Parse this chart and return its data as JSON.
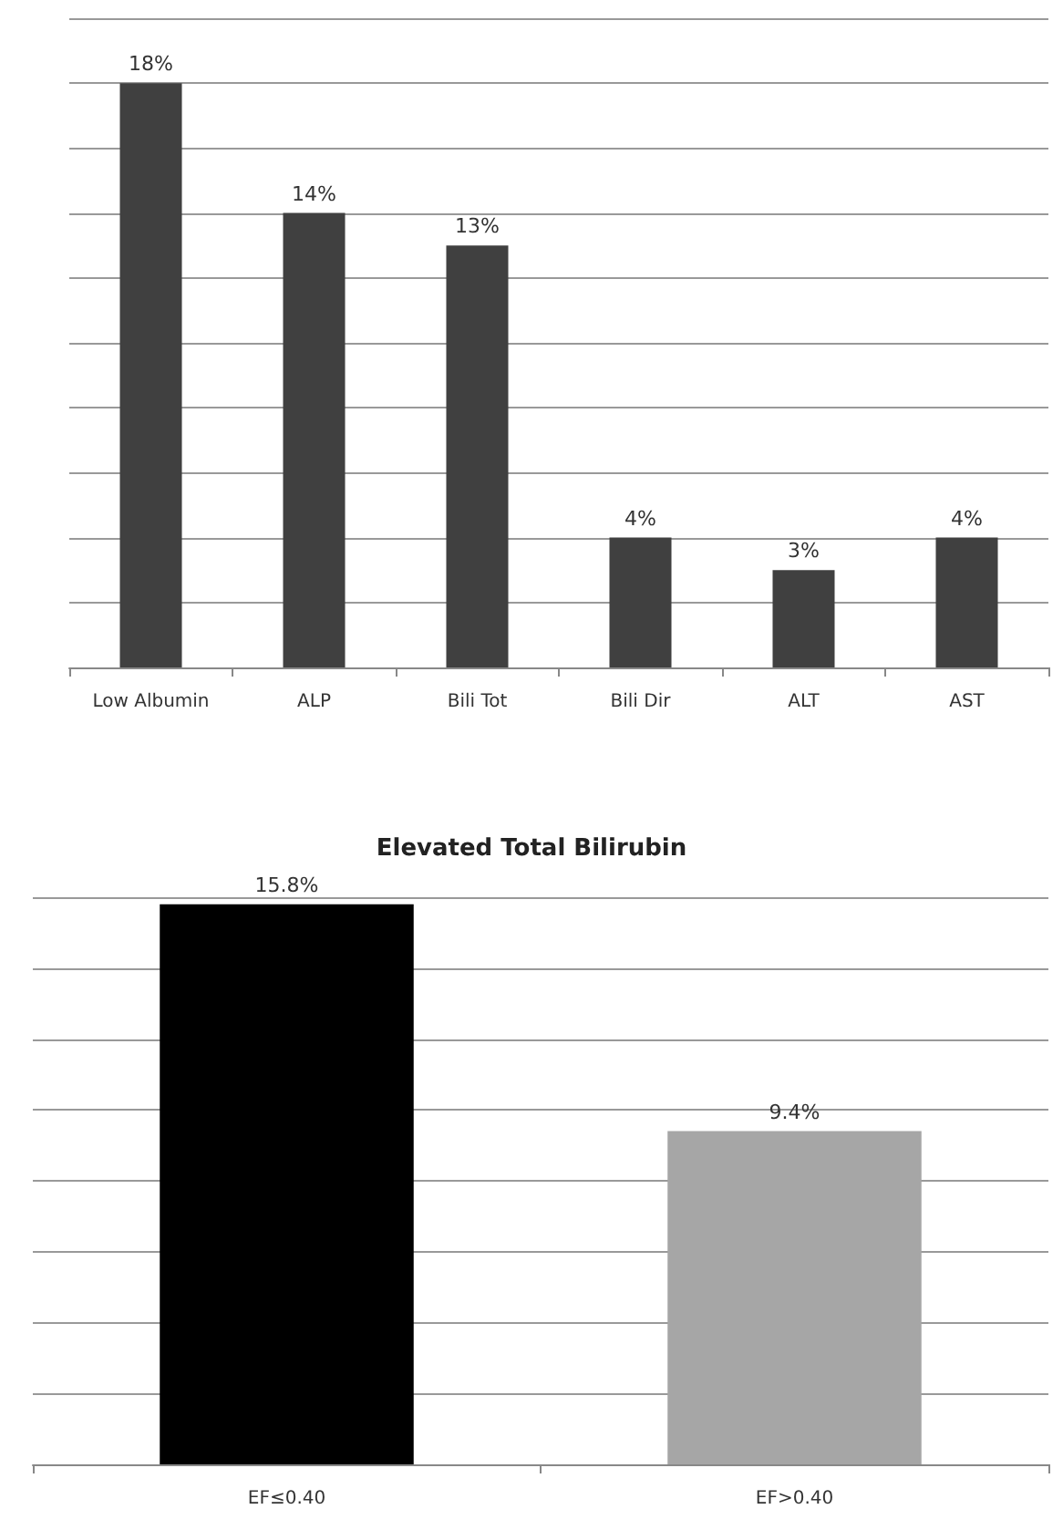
{
  "chart_data": [
    {
      "type": "bar",
      "categories": [
        "Low Albumin",
        "ALP",
        "Bili Tot",
        "Bili Dir",
        "ALT",
        "AST"
      ],
      "values": [
        18,
        14,
        13,
        4,
        3,
        4
      ],
      "value_labels": [
        "18%",
        "14%",
        "13%",
        "4%",
        "3%",
        "4%"
      ],
      "color": "#404040",
      "ylim": [
        0,
        20
      ],
      "yticks": [
        {
          "value": 0,
          "label": null
        },
        {
          "value": 2,
          "label": null
        },
        {
          "value": 4,
          "label": null
        },
        {
          "value": 6,
          "label": null
        },
        {
          "value": 8,
          "label": null
        },
        {
          "value": 10,
          "label": null
        },
        {
          "value": 12,
          "label": null
        },
        {
          "value": 14,
          "label": null
        },
        {
          "value": 16,
          "label": null
        },
        {
          "value": 18,
          "label": null
        },
        {
          "value": 20,
          "label": null
        }
      ],
      "grid": "y",
      "tick_labels": "x"
    },
    {
      "type": "bar",
      "title": "Elevated Total Bilirubin",
      "categories": [
        "EF≤0.40",
        "EF>0.40"
      ],
      "values": [
        15.8,
        9.4
      ],
      "value_labels": [
        "15.8%",
        "9.4%"
      ],
      "colors": [
        "#000000",
        "#a6a6a6"
      ],
      "ylim": [
        0,
        16
      ],
      "yticks": [
        {
          "value": 0,
          "label": null
        },
        {
          "value": 2,
          "label": null
        },
        {
          "value": 4,
          "label": null
        },
        {
          "value": 6,
          "label": null
        },
        {
          "value": 8,
          "label": null
        },
        {
          "value": 10,
          "label": null
        },
        {
          "value": 12,
          "label": null
        },
        {
          "value": 14,
          "label": null
        },
        {
          "value": 16,
          "label": null
        }
      ],
      "grid": "y",
      "tick_labels": "x"
    }
  ]
}
